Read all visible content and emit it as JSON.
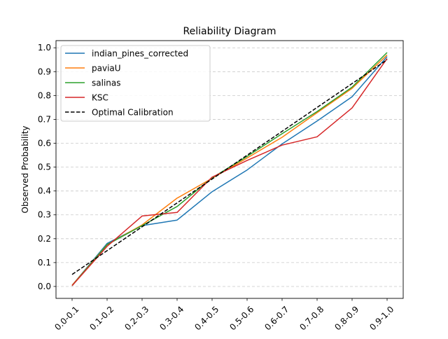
{
  "chart_data": {
    "type": "line",
    "title": "Reliability Diagram",
    "xlabel": "",
    "ylabel": "Observed Probability",
    "categories": [
      "0.0-0.1",
      "0.1-0.2",
      "0.2-0.3",
      "0.3-0.4",
      "0.4-0.5",
      "0.5-0.6",
      "0.6-0.7",
      "0.7-0.8",
      "0.8-0.9",
      "0.9-1.0"
    ],
    "y_ticks": [
      "0.0",
      "0.1",
      "0.2",
      "0.3",
      "0.4",
      "0.5",
      "0.6",
      "0.7",
      "0.8",
      "0.9",
      "1.0"
    ],
    "ylim": [
      -0.05,
      1.03
    ],
    "grid": "horizontal dashed",
    "legend_position": "top-left",
    "series": [
      {
        "name": "indian_pines_corrected",
        "color": "#1f77b4",
        "dash": "solid",
        "values": [
          0.005,
          0.18,
          0.255,
          0.278,
          0.397,
          0.488,
          0.597,
          0.693,
          0.795,
          0.963
        ]
      },
      {
        "name": "paviaU",
        "color": "#ff7f0e",
        "dash": "solid",
        "values": [
          0.005,
          0.175,
          0.258,
          0.37,
          0.453,
          0.538,
          0.625,
          0.728,
          0.83,
          0.97
        ]
      },
      {
        "name": "salinas",
        "color": "#2ca02c",
        "dash": "solid",
        "values": [
          0.003,
          0.175,
          0.255,
          0.335,
          0.455,
          0.545,
          0.64,
          0.733,
          0.835,
          0.98
        ]
      },
      {
        "name": "KSC",
        "color": "#d62728",
        "dash": "solid",
        "values": [
          0.003,
          0.168,
          0.295,
          0.31,
          0.458,
          0.528,
          0.592,
          0.627,
          0.748,
          0.955
        ]
      },
      {
        "name": "Optimal Calibration",
        "color": "#000000",
        "dash": "dashed",
        "values": [
          0.05,
          0.15,
          0.25,
          0.35,
          0.45,
          0.55,
          0.65,
          0.75,
          0.85,
          0.95
        ]
      }
    ]
  }
}
